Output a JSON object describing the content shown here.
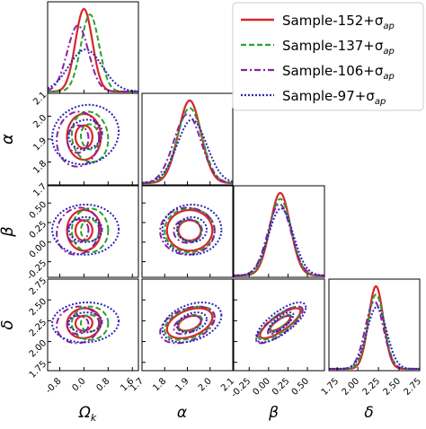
{
  "chart_data": {
    "type": "corner",
    "parameters": [
      {
        "key": "omega_k",
        "label": "Ω",
        "label_sub": "k",
        "ticks": [
          "-0.8",
          "0.0",
          "0.8",
          "1.6"
        ],
        "range": [
          -1.2,
          1.8
        ],
        "tick_values": [
          -0.8,
          0.0,
          0.8,
          1.6
        ],
        "tick_rotation": -45
      },
      {
        "key": "alpha",
        "label": "α",
        "label_sub": "",
        "ticks": [
          "1.7",
          "1.8",
          "1.9",
          "2.0",
          "2.1"
        ],
        "range": [
          1.7,
          2.1
        ],
        "tick_values": [
          1.7,
          1.8,
          1.9,
          2.0,
          2.1
        ],
        "tick_rotation": -45
      },
      {
        "key": "beta",
        "label": "β",
        "label_sub": "",
        "ticks": [
          "-0.25",
          "0.00",
          "0.25",
          "0.50"
        ],
        "range": [
          -0.45,
          0.72
        ],
        "tick_values": [
          -0.25,
          0.0,
          0.25,
          0.5
        ],
        "tick_rotation": -45
      },
      {
        "key": "delta",
        "label": "δ",
        "label_sub": "",
        "ticks": [
          "1.75",
          "2.00",
          "2.25",
          "2.50",
          "2.75"
        ],
        "range": [
          1.65,
          2.75
        ],
        "tick_values": [
          1.75,
          2.0,
          2.25,
          2.5,
          2.75
        ],
        "tick_rotation": -45
      }
    ],
    "series": [
      {
        "name": "Sample-152+σ",
        "name_sub": "ap",
        "color": "#d62728",
        "dash": "",
        "width": 2.2,
        "mean": [
          0.0,
          1.91,
          0.15,
          2.22
        ],
        "sd": [
          0.28,
          0.05,
          0.13,
          0.09
        ],
        "corr": {
          "0-1": 0.0,
          "0-2": 0.0,
          "0-3": 0.05,
          "1-2": 0.0,
          "1-3": 0.4,
          "2-3": 0.8
        }
      },
      {
        "name": "Sample-137+σ",
        "name_sub": "ap",
        "color": "#2ca02c",
        "dash": "6,3",
        "width": 2.0,
        "mean": [
          0.2,
          1.91,
          0.15,
          2.22
        ],
        "sd": [
          0.3,
          0.055,
          0.14,
          0.1
        ],
        "corr": {
          "0-1": -0.1,
          "0-2": 0.0,
          "0-3": 0.0,
          "1-2": 0.0,
          "1-3": 0.4,
          "2-3": 0.8
        }
      },
      {
        "name": "Sample-106+σ",
        "name_sub": "ap",
        "color": "#8b20a0",
        "dash": "7,3,2,3",
        "width": 2.0,
        "mean": [
          -0.2,
          1.9,
          0.14,
          2.2
        ],
        "sd": [
          0.35,
          0.06,
          0.15,
          0.11
        ],
        "corr": {
          "0-1": 0.05,
          "0-2": 0.1,
          "0-3": 0.05,
          "1-2": 0.0,
          "1-3": 0.4,
          "2-3": 0.8
        }
      },
      {
        "name": "Sample-97+σ",
        "name_sub": "ap",
        "color": "#2626b8",
        "dash": "2,2",
        "width": 2.0,
        "mean": [
          0.05,
          1.92,
          0.16,
          2.23
        ],
        "sd": [
          0.55,
          0.065,
          0.16,
          0.12
        ],
        "corr": {
          "0-1": 0.1,
          "0-2": 0.0,
          "0-3": 0.05,
          "1-2": 0.0,
          "1-3": 0.35,
          "2-3": 0.75
        }
      }
    ],
    "contour_levels_sigma": [
      1,
      2
    ],
    "legend_position": "top-right"
  }
}
